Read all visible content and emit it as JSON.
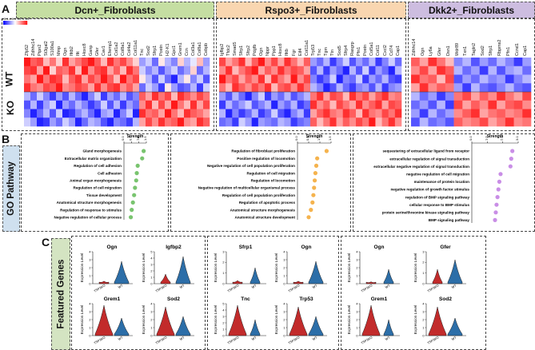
{
  "panel_a": {
    "letter": "A",
    "headers": [
      {
        "label": "Dcn+_Fibroblasts",
        "color": "#c5dea2"
      },
      {
        "label": "Rspo3+_Fibroblasts",
        "color": "#f9d6b0"
      },
      {
        "label": "Dkk2+_Fibroblasts",
        "color": "#cdbde0"
      }
    ],
    "colorbar_ticks": [
      "-1.5",
      "-1",
      "-0.5",
      "0",
      "0.5",
      "1",
      "1.5"
    ],
    "rows": [
      "WT",
      "KO"
    ],
    "genes_1": [
      "Zfp52",
      "Zdhhc14",
      "Ptpn2",
      "St3gal2",
      "S100a1",
      "Mmp",
      "Ogn",
      "Ifitb2",
      "Ifit",
      "Hoxc8",
      "Ganp",
      "Gfer",
      "Cav1",
      "Efemp1",
      "Col1a2",
      "Col8a1",
      "Col4a2",
      "Col11a1",
      "Tnc",
      "Sod2",
      "Sfrp1",
      "Postn",
      "H2-K1",
      "Gpc1",
      "Grem1",
      "Ccn",
      "Col3a1",
      "Col8a1",
      "Cebpb"
    ],
    "genes_2": [
      "Igfbp2",
      "Tfdc2",
      "Smad5",
      "Sfrp1",
      "Sfrp2",
      "Pdgfb",
      "Ogn",
      "Nppr",
      "Ppp1",
      "Hoxc8",
      "Ifitb",
      "Fgr",
      "Eif4",
      "Col11a1",
      "Trp53",
      "Tnc",
      "Tgm",
      "Ttn",
      "Sod5",
      "Sfrp4",
      "Rasgrp",
      "Pfn1",
      "Postn",
      "Col5a1",
      "Col11",
      "Cxcl2",
      "Cd74",
      "Cap1"
    ],
    "genes_3": [
      "Zdhhc14",
      "Ogn",
      "Ly6a",
      "Gfer",
      "Dsn1",
      "Wdr89",
      "Txn1",
      "Tagln2",
      "Sod2",
      "Sfrp1",
      "Rbpms2",
      "Pfn1",
      "Ccnd1",
      "Cap1"
    ],
    "heat_1": [
      [
        1,
        0.7,
        0.8,
        0.3,
        0.6,
        0.2,
        0.9,
        0.4,
        0.6,
        0.8,
        1,
        0.7,
        0.3,
        0.9,
        0.6,
        0.8,
        0.5,
        0.2,
        -0.4,
        -0.2,
        -0.6,
        0.1,
        -0.3,
        -0.5,
        0.2,
        -0.3,
        -0.1,
        0.3,
        -0.4
      ],
      [
        0.8,
        0.9,
        0.4,
        1,
        0.2,
        0.7,
        0.6,
        0.9,
        0.3,
        1,
        0.5,
        0.8,
        0.9,
        0.4,
        0.7,
        0.3,
        0.9,
        0.6,
        -0.2,
        -0.5,
        -0.3,
        -0.7,
        -0.4,
        -0.2,
        -0.6,
        -0.4,
        0.2,
        -0.6,
        -0.3
      ],
      [
        0.6,
        0.4,
        1,
        0.6,
        0.9,
        0.8,
        0.3,
        0.7,
        0.9,
        0.4,
        0.8,
        0.6,
        1,
        0.7,
        0.3,
        1,
        0.6,
        0.8,
        0.1,
        -0.3,
        -0.7,
        -0.2,
        -0.6,
        -0.9,
        -0.3,
        0.1,
        -0.5,
        -0.2,
        -0.7
      ],
      [
        0.9,
        0.6,
        0.5,
        0.8,
        0.7,
        1,
        0.5,
        0.6,
        0.8,
        0.7,
        0.4,
        0.9,
        0.5,
        0.8,
        0.9,
        0.5,
        0.7,
        0.4,
        -0.6,
        -0.2,
        -0.4,
        -0.8,
        0.1,
        -0.4,
        -0.7,
        -0.6,
        -0.3,
        -0.8,
        -0.2
      ],
      [
        -0.3,
        -0.6,
        -0.2,
        -0.5,
        -0.8,
        -0.4,
        -0.7,
        -0.3,
        -0.6,
        -0.9,
        -0.5,
        -0.2,
        -0.8,
        -0.4,
        -0.6,
        -0.3,
        -0.7,
        -0.5,
        0.7,
        0.4,
        0.9,
        0.6,
        0.8,
        0.3,
        0.9,
        0.7,
        0.5,
        0.8,
        0.6
      ],
      [
        -0.7,
        -0.3,
        -0.8,
        -0.4,
        -0.2,
        -0.9,
        -0.4,
        -0.6,
        -0.3,
        -0.5,
        -0.8,
        -0.6,
        -0.2,
        -0.7,
        -0.3,
        -0.8,
        -0.4,
        -0.6,
        0.5,
        0.9,
        0.3,
        0.8,
        0.4,
        1,
        0.6,
        0.3,
        0.9,
        0.4,
        0.8
      ],
      [
        -0.5,
        -0.9,
        -0.6,
        -0.3,
        -0.7,
        -0.2,
        -0.9,
        -0.8,
        -0.5,
        -0.3,
        -0.6,
        -0.9,
        -0.4,
        -0.3,
        -0.9,
        -0.5,
        -0.2,
        -0.9,
        0.9,
        0.6,
        0.7,
        0.4,
        1,
        0.6,
        0.3,
        0.9,
        0.7,
        0.6,
        0.4
      ],
      [
        -0.2,
        -0.4,
        -0.9,
        -0.8,
        -0.4,
        -0.6,
        -0.2,
        -0.4,
        -0.9,
        -0.6,
        -0.3,
        -0.4,
        -0.7,
        -0.9,
        -0.5,
        -0.6,
        -0.8,
        -0.3,
        0.4,
        0.8,
        0.5,
        0.9,
        0.6,
        0.7,
        1,
        0.5,
        0.4,
        0.9,
        0.7
      ]
    ],
    "heat_2": [
      [
        0.8,
        0.4,
        0.6,
        0.9,
        0.3,
        0.7,
        1,
        0.5,
        0.8,
        0.4,
        0.9,
        0.6,
        0.3,
        0.7,
        -0.4,
        -0.6,
        -0.3,
        -0.8,
        -0.5,
        -0.2,
        -0.7,
        -0.4,
        -0.6,
        -0.3,
        -0.8,
        -0.5,
        -0.2,
        -0.6
      ],
      [
        0.5,
        0.9,
        0.3,
        0.6,
        0.8,
        1,
        0.4,
        0.7,
        0.5,
        0.9,
        0.6,
        0.8,
        0.7,
        0.4,
        -0.7,
        -0.3,
        -0.8,
        -0.4,
        -0.6,
        -0.9,
        -0.3,
        -0.7,
        -0.2,
        -0.8,
        -0.4,
        -0.6,
        -0.9,
        -0.3
      ],
      [
        1,
        0.6,
        0.8,
        0.4,
        0.7,
        0.5,
        0.9,
        0.3,
        0.9,
        0.6,
        0.4,
        1,
        0.5,
        0.8,
        -0.5,
        -0.8,
        -0.6,
        -0.2,
        -0.9,
        -0.5,
        -0.6,
        -0.2,
        -0.8,
        -0.4,
        -0.6,
        -0.3,
        -0.7,
        -0.8
      ],
      [
        0.6,
        0.3,
        0.9,
        0.7,
        0.5,
        0.8,
        0.6,
        0.9,
        0.3,
        0.7,
        0.8,
        0.5,
        0.9,
        0.6,
        -0.3,
        -0.5,
        -0.9,
        -0.7,
        -0.3,
        -0.6,
        -0.8,
        -0.5,
        -0.4,
        -0.7,
        -0.3,
        -0.8,
        -0.5,
        -0.4
      ],
      [
        -0.4,
        -0.7,
        -0.3,
        -0.6,
        -0.9,
        -0.5,
        -0.2,
        -0.8,
        -0.4,
        -0.6,
        -0.3,
        -0.7,
        -0.5,
        -0.3,
        0.6,
        0.9,
        0.4,
        0.8,
        0.7,
        0.3,
        0.9,
        0.6,
        0.8,
        0.4,
        0.7,
        0.9,
        0.5,
        0.6
      ],
      [
        -0.8,
        -0.3,
        -0.6,
        -0.4,
        -0.2,
        -0.7,
        -0.5,
        -0.3,
        -0.9,
        -0.4,
        -0.6,
        -0.3,
        -0.8,
        -0.6,
        0.9,
        0.5,
        0.7,
        0.3,
        0.8,
        0.6,
        0.4,
        0.9,
        0.5,
        0.7,
        0.9,
        0.4,
        0.8,
        0.7
      ],
      [
        -0.3,
        -0.9,
        -0.5,
        -0.8,
        -0.6,
        -0.3,
        -0.8,
        -0.6,
        -0.2,
        -0.7,
        -0.9,
        -0.5,
        -0.3,
        -0.8,
        0.4,
        0.7,
        0.9,
        0.6,
        0.5,
        0.9,
        0.7,
        0.3,
        0.9,
        0.6,
        0.5,
        0.8,
        0.6,
        0.9
      ],
      [
        -0.6,
        -0.5,
        -0.8,
        -0.2,
        -0.4,
        -0.9,
        -0.4,
        -0.5,
        -0.6,
        -0.3,
        -0.4,
        -0.8,
        -0.6,
        -0.5,
        0.7,
        0.3,
        0.6,
        0.9,
        0.4,
        0.7,
        0.5,
        0.8,
        0.6,
        1,
        0.3,
        0.6,
        0.9,
        0.5
      ]
    ],
    "heat_3": [
      [
        0.7,
        0.4,
        0.9,
        0.6,
        0.3,
        -0.5,
        -0.3,
        -0.7,
        -0.4,
        -0.6,
        -0.3,
        -0.5,
        -0.8,
        -0.4
      ],
      [
        0.5,
        0.8,
        0.4,
        0.9,
        0.7,
        -0.3,
        -0.6,
        -0.4,
        -0.8,
        -0.3,
        -0.7,
        -0.4,
        -0.3,
        -0.6
      ],
      [
        0.9,
        0.6,
        0.7,
        0.3,
        0.8,
        -0.7,
        -0.4,
        -0.6,
        -0.3,
        -0.5,
        -0.4,
        -0.8,
        -0.5,
        -0.3
      ],
      [
        0.4,
        0.9,
        0.5,
        0.7,
        0.6,
        -0.4,
        -0.8,
        -0.3,
        -0.6,
        -0.7,
        -0.5,
        -0.3,
        -0.6,
        -0.7
      ],
      [
        -0.3,
        -0.6,
        -0.4,
        -0.8,
        -0.5,
        0.6,
        0.8,
        0.4,
        0.7,
        0.5,
        0.9,
        0.6,
        0.4,
        0.8
      ],
      [
        -0.6,
        -0.4,
        -0.7,
        -0.3,
        -0.8,
        0.8,
        0.4,
        0.7,
        0.5,
        0.9,
        0.4,
        0.7,
        0.8,
        0.5
      ],
      [
        -0.4,
        -0.8,
        -0.3,
        -0.6,
        -0.4,
        0.5,
        0.7,
        0.9,
        0.4,
        0.6,
        0.7,
        0.5,
        0.6,
        0.9
      ],
      [
        -0.7,
        -0.3,
        -0.6,
        -0.5,
        -0.7,
        0.7,
        0.5,
        0.6,
        0.8,
        0.4,
        0.6,
        0.9,
        0.5,
        0.6
      ]
    ]
  },
  "panel_b": {
    "letter": "B",
    "side_label": "GO Pathway",
    "axis_title": "Strength",
    "charts": [
      {
        "ticks": [
          "0.0",
          "0.5",
          "1.0",
          "1.5"
        ],
        "xmax": 1.5,
        "color": "#79c46f",
        "terms": [
          "Gland morphogenesis",
          "Extracellular matrix organization",
          "Regulation of cell adhesion",
          "Cell adhesion",
          "Animal organ morphogenesis",
          "Regulation of cell migration",
          "Tissue development",
          "Anatomical structure morphogenesis",
          "Regulation of response to stimulus",
          "Negative regulation of cellular process"
        ],
        "values": [
          1.32,
          1.22,
          0.92,
          0.86,
          0.82,
          0.74,
          0.68,
          0.6,
          0.52,
          0.46
        ]
      },
      {
        "ticks": [
          "0.0",
          "0.5",
          "1.0",
          "1.5"
        ],
        "xmax": 1.5,
        "color": "#f5b34e",
        "terms": [
          "Regulation of fibroblast proliferation",
          "Positive regulation of locomotion",
          "Negative regulation of cell population proliferation",
          "Regulation of cell migration",
          "Regulation of locomotion",
          "Negative regulation of multicellular organismal process",
          "Regulation of cell population proliferation",
          "Regulation of apoptotic process",
          "Anatomical structure morphogenesis",
          "Anatomical structure development"
        ],
        "values": [
          1.3,
          0.88,
          0.84,
          0.8,
          0.77,
          0.74,
          0.71,
          0.67,
          0.6,
          0.5
        ]
      },
      {
        "ticks": [
          "0.0",
          "1.0",
          "2.0",
          "3.0"
        ],
        "xmax": 3.0,
        "color": "#c98ee6",
        "terms": [
          "sequestering of extracellular ligand from receptor",
          "extracellular regulation of signal transduction",
          "extracellular negative regulation of signal transduction",
          "negative regulation of cell migration",
          "maintenance of protein location",
          "negative regulation of growth factor stimulus",
          "regulation of BMP signaling pathway",
          "cellular response to BMP stimulus",
          "protein serine/threonine kinase signaling pathway",
          "BMP signaling pathway"
        ],
        "values": [
          2.62,
          2.55,
          2.5,
          1.86,
          1.78,
          1.72,
          1.66,
          1.6,
          1.55,
          1.5
        ]
      }
    ]
  },
  "panel_c": {
    "letter": "C",
    "side_label": "Featured Genes",
    "ylabel": "Expression Level",
    "groups": [
      "TSP3KO",
      "WT"
    ],
    "colors": {
      "ko": "#c22b2b",
      "wt": "#2c6ea8"
    },
    "plots": [
      {
        "gene": "Ogn",
        "ticks": [
          "0",
          "1",
          "2",
          "3",
          "4"
        ],
        "ko": 0.08,
        "wt": 0.7
      },
      {
        "gene": "Igfbp2",
        "ticks": [
          "0",
          "1",
          "2",
          "3",
          "4",
          "5"
        ],
        "ko": 0.3,
        "wt": 0.85
      },
      {
        "gene": "Sfrp1",
        "ticks": [
          "0",
          "1",
          "2",
          "3"
        ],
        "ko": 0.1,
        "wt": 0.5
      },
      {
        "gene": "Ogn",
        "ticks": [
          "0",
          "1",
          "2",
          "3",
          "4"
        ],
        "ko": 0.08,
        "wt": 0.7
      },
      {
        "gene": "Ogn",
        "ticks": [
          "0",
          "1",
          "2",
          "3",
          "4"
        ],
        "ko": 0.06,
        "wt": 0.45
      },
      {
        "gene": "Gfer",
        "ticks": [
          "0",
          "1",
          "2",
          "3"
        ],
        "ko": 0.45,
        "wt": 0.75
      },
      {
        "gene": "Grem1",
        "ticks": [
          "0",
          "1",
          "2",
          "3",
          "4"
        ],
        "ko": 0.95,
        "wt": 0.55
      },
      {
        "gene": "Sod2",
        "ticks": [
          "0",
          "1",
          "2",
          "3",
          "4"
        ],
        "ko": 0.9,
        "wt": 0.6
      },
      {
        "gene": "Tnc",
        "ticks": [
          "0",
          "1",
          "2",
          "3",
          "4",
          "5"
        ],
        "ko": 0.95,
        "wt": 0.5
      },
      {
        "gene": "Trp53",
        "ticks": [
          "0",
          "1",
          "2",
          "3",
          "4"
        ],
        "ko": 0.9,
        "wt": 0.6
      },
      {
        "gene": "Grem1",
        "ticks": [
          "0",
          "1",
          "2",
          "3",
          "4"
        ],
        "ko": 0.95,
        "wt": 0.5
      },
      {
        "gene": "Sod2",
        "ticks": [
          "0",
          "1",
          "2",
          "3",
          "4"
        ],
        "ko": 0.9,
        "wt": 0.55
      }
    ]
  }
}
